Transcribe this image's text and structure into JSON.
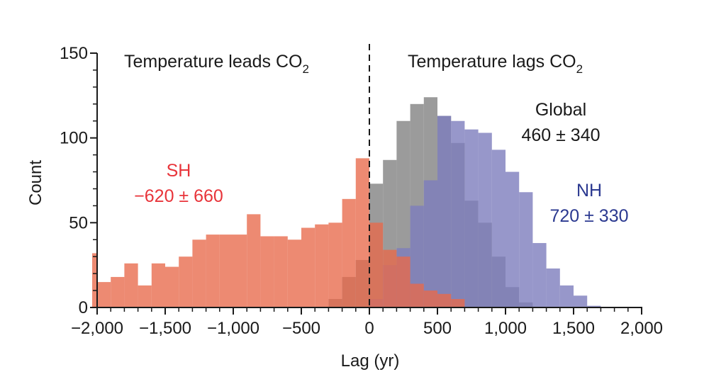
{
  "chart_data": {
    "type": "bar",
    "xlabel": "Lag (yr)",
    "ylabel": "Count",
    "xlim": [
      -2000,
      2000
    ],
    "ylim": [
      0,
      150
    ],
    "bin_width": 100,
    "xticks": [
      {
        "value": -2000,
        "label": "−2,000"
      },
      {
        "value": -1500,
        "label": "−1,500"
      },
      {
        "value": -1000,
        "label": "−1,000"
      },
      {
        "value": -500,
        "label": "−500"
      },
      {
        "value": 0,
        "label": "0"
      },
      {
        "value": 500,
        "label": "500"
      },
      {
        "value": 1000,
        "label": "1,000"
      },
      {
        "value": 1500,
        "label": "1,500"
      },
      {
        "value": 2000,
        "label": "2,000"
      }
    ],
    "yticks": [
      {
        "value": 0,
        "label": "0"
      },
      {
        "value": 50,
        "label": "50"
      },
      {
        "value": 100,
        "label": "100"
      },
      {
        "value": 150,
        "label": "150"
      }
    ],
    "vline_x": 0,
    "region_labels": {
      "lead_text": "Temperature leads CO",
      "lead_sub": "2",
      "lag_text": "Temperature lags CO",
      "lag_sub": "2"
    },
    "series": [
      {
        "name": "Global",
        "stat": "460 ± 340",
        "color": "#8a8a8a",
        "label_color": "#1a1a1a",
        "opacity": 0.85,
        "bins_start": [
          -300,
          -200,
          -100,
          0,
          100,
          200,
          300,
          400,
          500,
          600,
          700,
          800,
          900,
          1000,
          1100
        ],
        "values": [
          5,
          18,
          28,
          73,
          87,
          110,
          120,
          124,
          113,
          97,
          63,
          50,
          30,
          12,
          3
        ]
      },
      {
        "name": "NH",
        "stat": "720 ± 330",
        "color": "#7d7dbd",
        "label_color": "#2b3990",
        "opacity": 0.8,
        "bins_start": [
          0,
          100,
          200,
          300,
          400,
          500,
          600,
          700,
          800,
          900,
          1000,
          1100,
          1200,
          1300,
          1400,
          1500,
          1600
        ],
        "values": [
          5,
          25,
          35,
          60,
          75,
          113,
          110,
          105,
          103,
          93,
          80,
          68,
          38,
          23,
          13,
          7,
          1
        ]
      },
      {
        "name": "SH",
        "stat": "−620 ± 660",
        "color": "#e8694a",
        "label_color": "#e8343a",
        "opacity": 0.78,
        "bins_start": [
          -2100,
          -2000,
          -1900,
          -1800,
          -1700,
          -1600,
          -1500,
          -1400,
          -1300,
          -1200,
          -1100,
          -1000,
          -900,
          -800,
          -700,
          -600,
          -500,
          -400,
          -300,
          -200,
          -100,
          0,
          100,
          200,
          300,
          400,
          500,
          600
        ],
        "values": [
          32,
          15,
          18,
          26,
          13,
          26,
          24,
          30,
          40,
          43,
          43,
          43,
          55,
          42,
          42,
          40,
          47,
          49,
          50,
          64,
          88,
          50,
          34,
          30,
          14,
          10,
          8,
          5
        ]
      }
    ]
  }
}
